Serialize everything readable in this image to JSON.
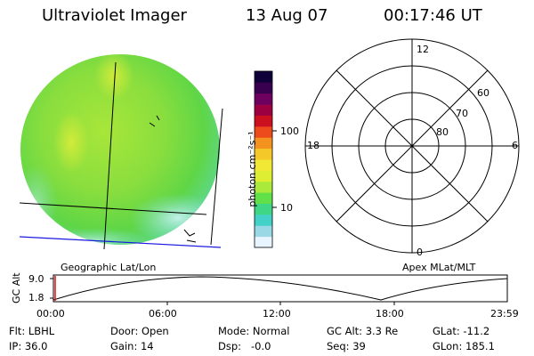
{
  "header": {
    "instrument": "Ultraviolet Imager",
    "date": "13 Aug 07",
    "time": "00:17:46 UT"
  },
  "colorbar": {
    "unit_label": "photon cm⁻²s⁻¹",
    "ticks": [
      "100",
      "10"
    ],
    "scale": "log",
    "colors": [
      "#e8f4ff",
      "#9ad8e6",
      "#42d2c8",
      "#3fd686",
      "#61e049",
      "#a9ea3a",
      "#ddee33",
      "#f0e834",
      "#f4c828",
      "#f49220",
      "#ee4b1c",
      "#cc1020",
      "#9c0040",
      "#6e0060",
      "#3a0050",
      "#10003a"
    ]
  },
  "image_panel": {
    "caption": "Geographic Lat/Lon"
  },
  "polar_plot": {
    "caption": "Apex MLat/MLT",
    "mlt_labels": {
      "top": "12",
      "left": "18",
      "right": "6",
      "bottom": "0"
    },
    "lat_labels": [
      "60",
      "70",
      "80"
    ]
  },
  "altitude_plot": {
    "ylabel": "GC Alt",
    "yticks": [
      "9.0",
      "1.8"
    ],
    "xticks": [
      "00:00",
      "06:00",
      "12:00",
      "18:00",
      "23:59"
    ]
  },
  "info": {
    "flt": "Flt: LBHL",
    "ip": "IP: 36.0",
    "door": "Door: Open",
    "gain": "Gain: 14",
    "mode": "Mode: Normal",
    "dsp": "Dsp:   -0.0",
    "gc_alt": "GC Alt: 3.3 Re",
    "seq": "Seq: 39",
    "glat": "GLat: -11.2",
    "glon": "GLon: 185.1"
  }
}
